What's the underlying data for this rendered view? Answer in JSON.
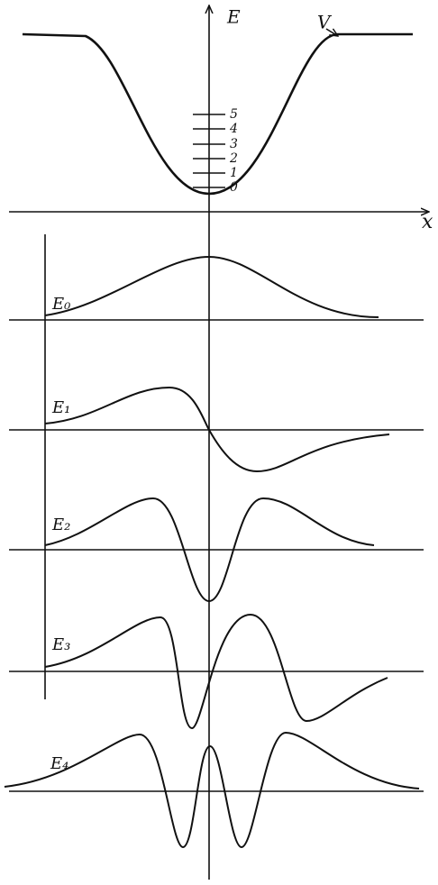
{
  "axes": {
    "energy": "E",
    "position": "x"
  },
  "potential": "V",
  "levels": [
    "0",
    "1",
    "2",
    "3",
    "4",
    "5"
  ],
  "states": [
    "E₀",
    "E₁",
    "E₂",
    "E₃",
    "E₄"
  ]
}
